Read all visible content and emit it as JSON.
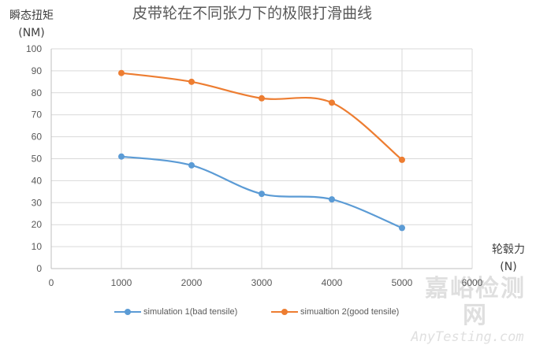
{
  "chart_data": {
    "type": "line",
    "title": "皮带轮在不同张力下的极限打滑曲线",
    "ylabel_line1": "瞬态扭矩",
    "ylabel_line2": "(NM)",
    "xlabel_line1": "轮毂力",
    "xlabel_line2": "(N)",
    "xlim": [
      0,
      6000
    ],
    "ylim": [
      0,
      100
    ],
    "x_ticks": [
      0,
      1000,
      2000,
      3000,
      4000,
      5000,
      6000
    ],
    "y_ticks": [
      0,
      10,
      20,
      30,
      40,
      50,
      60,
      70,
      80,
      90,
      100
    ],
    "grid": true,
    "smooth": true,
    "legend_position": "bottom",
    "x": [
      1000,
      2000,
      3000,
      4000,
      5000
    ],
    "series": [
      {
        "name": "simulation 1(bad tensile)",
        "color": "#5B9BD5",
        "values": [
          51,
          47,
          34,
          31.5,
          18.5
        ]
      },
      {
        "name": "simualtion 2(good tensile)",
        "color": "#ED7D31",
        "values": [
          89,
          85,
          77.5,
          75.5,
          49.5
        ]
      }
    ]
  },
  "watermark": {
    "cn": "嘉峪检测网",
    "en": "AnyTesting.com"
  }
}
